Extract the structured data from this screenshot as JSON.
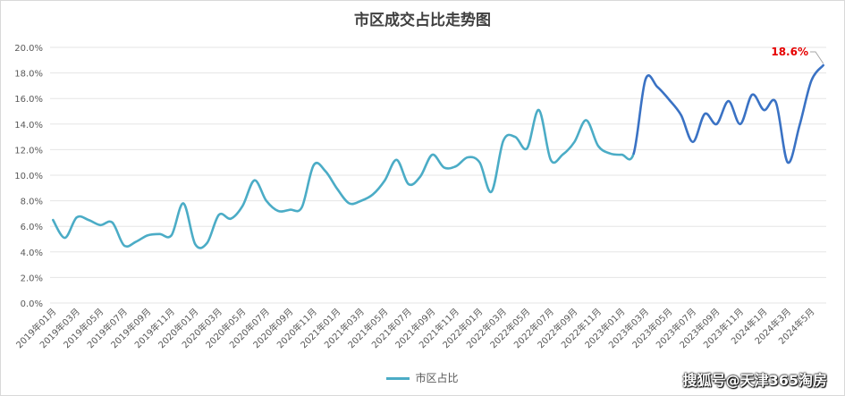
{
  "chart_data": {
    "type": "line",
    "title": "市区成交占比走势图",
    "ylim": [
      0,
      20
    ],
    "y_ticks": [
      "0.0%",
      "2.0%",
      "4.0%",
      "6.0%",
      "8.0%",
      "10.0%",
      "12.0%",
      "14.0%",
      "16.0%",
      "18.0%",
      "20.0%"
    ],
    "x_tick_labels": [
      "2019年01月",
      "2019年03月",
      "2019年05月",
      "2019年07月",
      "2019年09月",
      "2019年11月",
      "2020年01月",
      "2020年03月",
      "2020年05月",
      "2020年07月",
      "2020年09月",
      "2020年11月",
      "2021年01月",
      "2021年03月",
      "2021年05月",
      "2021年07月",
      "2021年09月",
      "2021年11月",
      "2022年01月",
      "2022年03月",
      "2022年05月",
      "2022年07月",
      "2022年09月",
      "2022年11月",
      "2023年01月",
      "2023年03月",
      "2023年05月",
      "2023年07月",
      "2023年09月",
      "2023年11月",
      "2024年1月",
      "2024年3月",
      "2024年5月"
    ],
    "grid": true,
    "legend_position": "bottom",
    "series": [
      {
        "name": "市区占比",
        "color": "#4bacc6",
        "highlight_color": "#3a72c4",
        "values": [
          6.5,
          5.1,
          6.7,
          6.5,
          6.1,
          6.3,
          4.5,
          4.8,
          5.3,
          5.4,
          5.3,
          7.8,
          4.6,
          4.7,
          6.9,
          6.6,
          7.6,
          9.6,
          8.0,
          7.2,
          7.3,
          7.5,
          10.8,
          10.3,
          8.9,
          7.8,
          8.0,
          8.5,
          9.6,
          11.2,
          9.3,
          9.9,
          11.6,
          10.6,
          10.7,
          11.4,
          11.0,
          8.7,
          12.7,
          13.0,
          12.1,
          15.1,
          11.2,
          11.6,
          12.6,
          14.3,
          12.3,
          11.7,
          11.6,
          11.7,
          17.5,
          16.9,
          15.9,
          14.7,
          12.6,
          14.8,
          14.0,
          15.8,
          14.0,
          16.3,
          15.1,
          15.7,
          11.0,
          13.9,
          17.4,
          18.6
        ]
      }
    ],
    "annotation": "18.6%"
  },
  "legend_label": "市区占比",
  "watermark": "搜狐号@天津365淘房"
}
